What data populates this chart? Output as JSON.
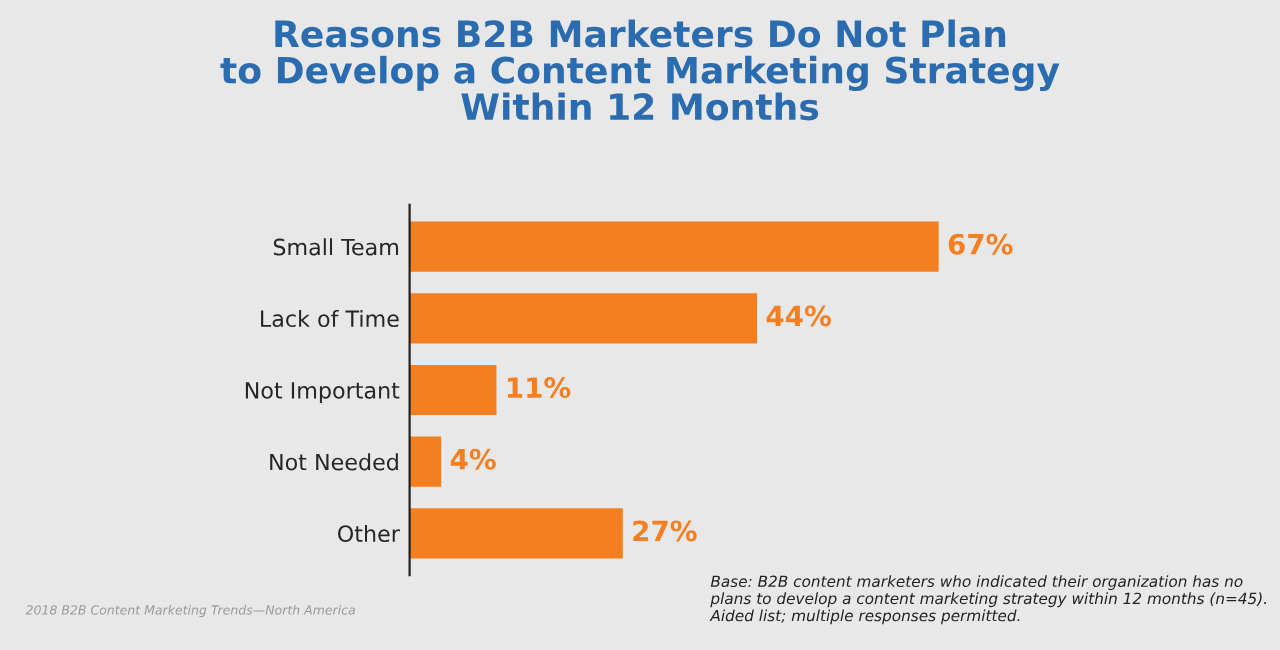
{
  "chart_data": {
    "type": "bar",
    "orientation": "horizontal",
    "title": "Reasons B2B Marketers Do Not Plan\nto Develop a Content Marketing Strategy\nWithin 12 Months",
    "categories": [
      "Small Team",
      "Lack of Time",
      "Not Important",
      "Not Needed",
      "Other"
    ],
    "values": [
      67,
      44,
      11,
      4,
      27
    ],
    "color": "#f47f20",
    "data_labels": true,
    "value_labels": [
      "67%",
      "44%",
      "11%",
      "4%",
      "27%"
    ],
    "grid": false,
    "annotations": [
      "2018 B2B Content Marketing Trends—North America",
      "Base: B2B content marketers who indicated their organization has no plans to develop a content marketing strategy within 12 months (n=45). Aided list; multiple responses permitted."
    ]
  }
}
